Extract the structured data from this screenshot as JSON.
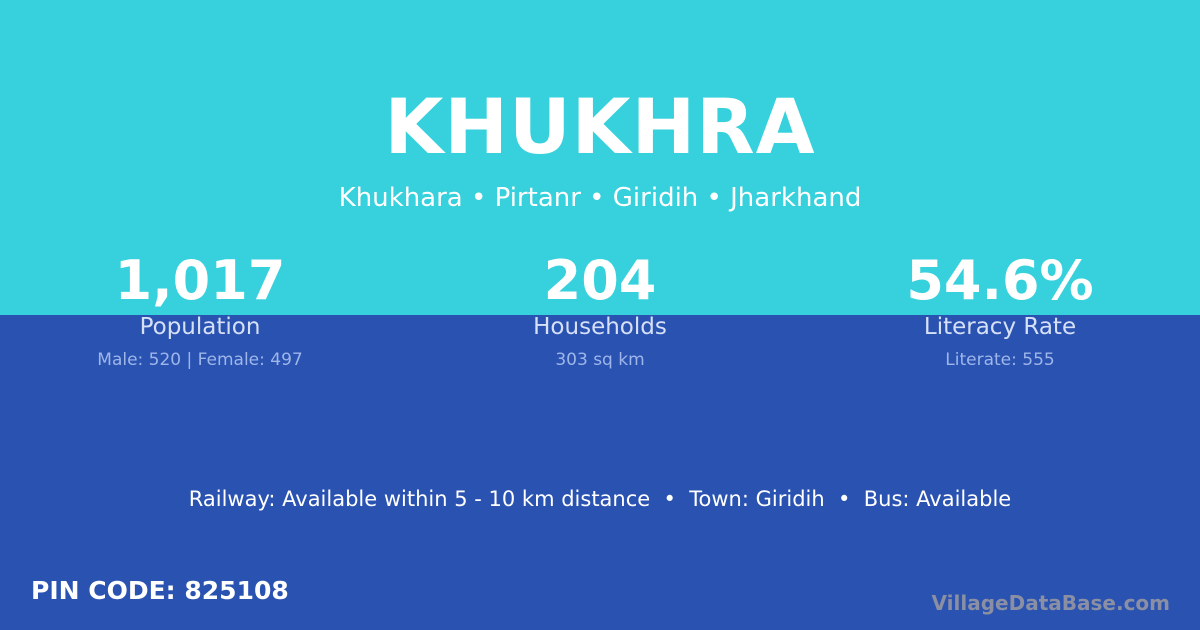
{
  "colors": {
    "top_background": "#36d1dc",
    "bottom_background": "#2952b1",
    "text": "#ffffff"
  },
  "village": {
    "name": "KHUKHRA",
    "location": "Khukhara • Pirtanr • Giridih • Jharkhand"
  },
  "stats": [
    {
      "value": "1,017",
      "label": "Population",
      "detail": "Male: 520 | Female: 497"
    },
    {
      "value": "204",
      "label": "Households",
      "detail": "303 sq km"
    },
    {
      "value": "54.6%",
      "label": "Literacy Rate",
      "detail": "Literate: 555"
    }
  ],
  "facts": "Railway: Available within 5 - 10 km distance  •  Town: Giridih  •  Bus: Available",
  "pin_code": "PIN CODE: 825108",
  "brand": "VillageDataBase.com"
}
